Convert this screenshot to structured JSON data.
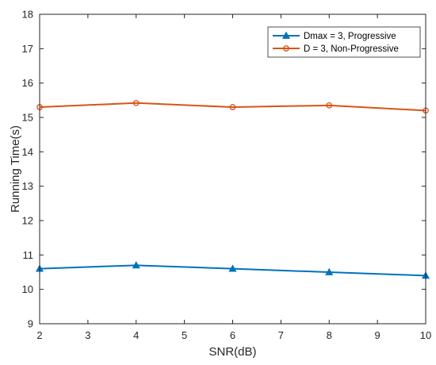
{
  "chart_data": {
    "type": "line",
    "title": "",
    "xlabel": "SNR(dB)",
    "ylabel": "Running Time(s)",
    "xlim": [
      2,
      10
    ],
    "ylim": [
      9,
      18
    ],
    "xticks": [
      2,
      3,
      4,
      5,
      6,
      7,
      8,
      9,
      10
    ],
    "yticks": [
      9,
      10,
      11,
      12,
      13,
      14,
      15,
      16,
      17,
      18
    ],
    "grid": false,
    "legend_position": "top-right",
    "x": [
      2,
      4,
      6,
      8,
      10
    ],
    "series": [
      {
        "name": "Dmax = 3, Progressive",
        "values": [
          10.6,
          10.7,
          10.6,
          10.5,
          10.4
        ],
        "color": "#0072BD",
        "marker": "triangle"
      },
      {
        "name": "D = 3, Non-Progressive",
        "values": [
          15.3,
          15.42,
          15.3,
          15.35,
          15.2
        ],
        "color": "#D95319",
        "marker": "circle"
      }
    ]
  }
}
